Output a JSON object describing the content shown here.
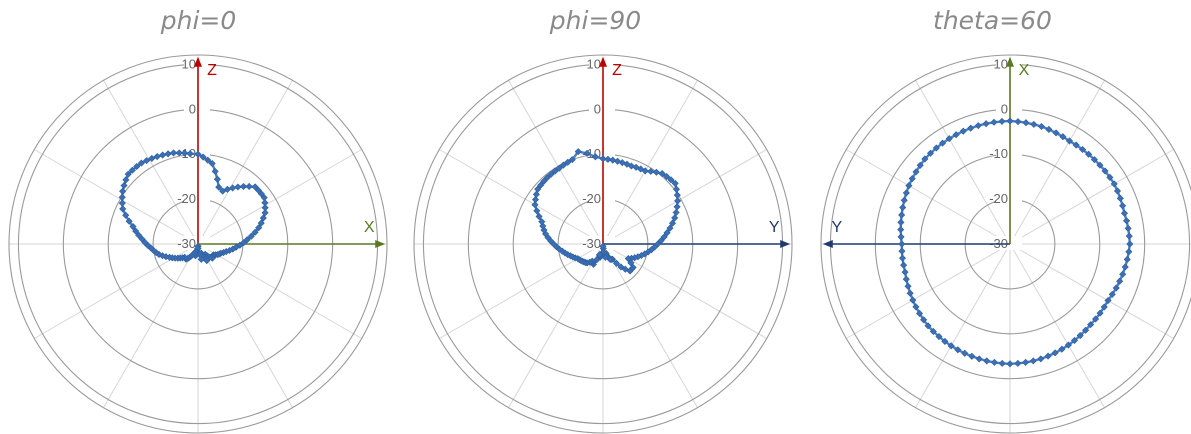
{
  "chart_data": [
    {
      "type": "polar-line",
      "title": "phi=0",
      "r_ticks": [
        "10",
        "0",
        "-10",
        "-20",
        "-30"
      ],
      "rlim": [
        -30,
        10
      ],
      "axes": [
        {
          "label": "Z",
          "direction": "up",
          "color": "#c00000"
        },
        {
          "label": "X",
          "direction": "right",
          "color": "#5a7a20"
        }
      ],
      "series_color": "#4a7fc6",
      "points": [
        [
          0,
          -10.0
        ],
        [
          10,
          -11.8
        ],
        [
          20,
          -16.5
        ],
        [
          25,
          -17.0
        ],
        [
          35,
          -14.5
        ],
        [
          45,
          -12.0
        ],
        [
          55,
          -12.0
        ],
        [
          65,
          -13.5
        ],
        [
          75,
          -16.0
        ],
        [
          85,
          -19.0
        ],
        [
          95,
          -21.5
        ],
        [
          105,
          -23.5
        ],
        [
          112,
          -24.5
        ],
        [
          118,
          -25.0
        ],
        [
          125,
          -25.8
        ],
        [
          135,
          -25.5
        ],
        [
          145,
          -27.2
        ],
        [
          152,
          -25.8
        ],
        [
          160,
          -27.8
        ],
        [
          168,
          -26.5
        ],
        [
          175,
          -29.5
        ],
        [
          180,
          -29.0
        ],
        [
          185,
          -29.0
        ],
        [
          192,
          -27.3
        ],
        [
          198,
          -28.2
        ],
        [
          205,
          -27.5
        ],
        [
          212,
          -26.5
        ],
        [
          218,
          -25.7
        ],
        [
          225,
          -25.8
        ],
        [
          235,
          -24.5
        ],
        [
          245,
          -23.0
        ],
        [
          255,
          -21.0
        ],
        [
          265,
          -19.5
        ],
        [
          275,
          -17.5
        ],
        [
          285,
          -15.0
        ],
        [
          295,
          -11.5
        ],
        [
          305,
          -9.5
        ],
        [
          315,
          -8.0
        ],
        [
          325,
          -8.0
        ],
        [
          335,
          -8.5
        ],
        [
          345,
          -9.0
        ],
        [
          355,
          -9.8
        ]
      ]
    },
    {
      "type": "polar-line",
      "title": "phi=90",
      "r_ticks": [
        "10",
        "0",
        "-10",
        "-20",
        "-30"
      ],
      "rlim": [
        -30,
        10
      ],
      "axes": [
        {
          "label": "Z",
          "direction": "up",
          "color": "#c00000"
        },
        {
          "label": "Y",
          "direction": "right",
          "color": "#1f3a6e"
        }
      ],
      "series_color": "#4a7fc6",
      "points": [
        [
          0,
          -11.0
        ],
        [
          10,
          -11.3
        ],
        [
          20,
          -11.5
        ],
        [
          30,
          -11.2
        ],
        [
          40,
          -9.5
        ],
        [
          50,
          -9.0
        ],
        [
          60,
          -10.8
        ],
        [
          70,
          -13.0
        ],
        [
          80,
          -15.5
        ],
        [
          90,
          -17.8
        ],
        [
          100,
          -19.8
        ],
        [
          110,
          -21.7
        ],
        [
          120,
          -23.5
        ],
        [
          128,
          -21.5
        ],
        [
          135,
          -21.5
        ],
        [
          142,
          -23.5
        ],
        [
          148,
          -26.0
        ],
        [
          155,
          -26.2
        ],
        [
          162,
          -27.8
        ],
        [
          170,
          -27.0
        ],
        [
          176,
          -29.0
        ],
        [
          180,
          -29.5
        ],
        [
          185,
          -28.0
        ],
        [
          192,
          -27.0
        ],
        [
          198,
          -27.5
        ],
        [
          205,
          -25.0
        ],
        [
          212,
          -25.5
        ],
        [
          220,
          -24.5
        ],
        [
          230,
          -24.0
        ],
        [
          240,
          -23.5
        ],
        [
          250,
          -22.3
        ],
        [
          260,
          -20.8
        ],
        [
          270,
          -19.0
        ],
        [
          280,
          -17.0
        ],
        [
          290,
          -15.5
        ],
        [
          300,
          -12.5
        ],
        [
          310,
          -11.0
        ],
        [
          320,
          -10.7
        ],
        [
          330,
          -10.5
        ],
        [
          340,
          -10.0
        ],
        [
          345,
          -8.7
        ],
        [
          350,
          -9.5
        ],
        [
          355,
          -10.5
        ]
      ]
    },
    {
      "type": "polar-line",
      "title": "theta=60",
      "r_ticks": [
        "10",
        "0",
        "-10",
        "-20",
        "-30"
      ],
      "rlim": [
        -30,
        10
      ],
      "axes": [
        {
          "label": "X",
          "direction": "up",
          "color": "#5a7a20"
        },
        {
          "label": "Y",
          "direction": "left",
          "color": "#1f3a6e"
        }
      ],
      "series_color": "#4a7fc6",
      "points": [
        [
          0,
          -2.6
        ],
        [
          15,
          -2.9
        ],
        [
          30,
          -3.5
        ],
        [
          45,
          -3.4
        ],
        [
          60,
          -3.2
        ],
        [
          75,
          -3.6
        ],
        [
          90,
          -3.3
        ],
        [
          105,
          -4.0
        ],
        [
          120,
          -4.8
        ],
        [
          135,
          -4.6
        ],
        [
          150,
          -4.0
        ],
        [
          165,
          -3.5
        ],
        [
          180,
          -3.3
        ],
        [
          195,
          -3.5
        ],
        [
          210,
          -3.8
        ],
        [
          225,
          -4.2
        ],
        [
          240,
          -5.0
        ],
        [
          255,
          -5.8
        ],
        [
          270,
          -5.9
        ],
        [
          285,
          -5.0
        ],
        [
          300,
          -4.0
        ],
        [
          315,
          -3.2
        ],
        [
          330,
          -2.9
        ],
        [
          345,
          -2.7
        ]
      ]
    }
  ]
}
